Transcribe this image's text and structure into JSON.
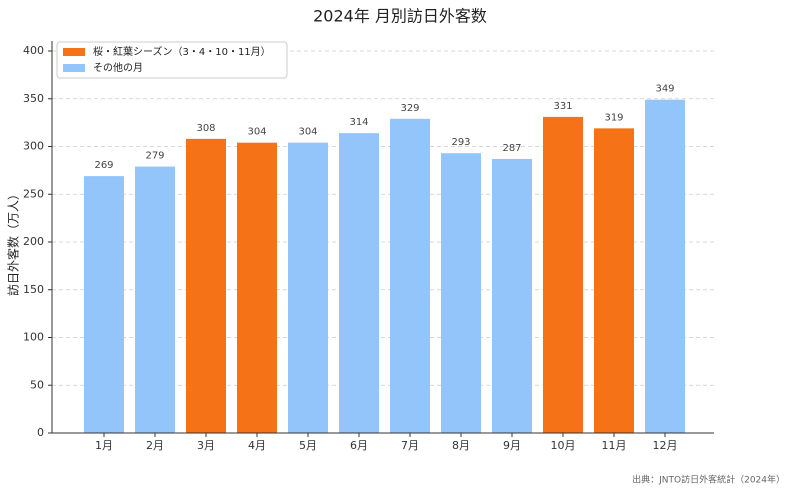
{
  "chart_data": {
    "type": "bar",
    "title": "2024年 月別訪日外客数",
    "y_label": "訪日外客数（万人）",
    "source": "出典：JNTO訪日外客統計（2024年）",
    "categories": [
      "1月",
      "2月",
      "3月",
      "4月",
      "5月",
      "6月",
      "7月",
      "8月",
      "9月",
      "10月",
      "11月",
      "12月"
    ],
    "series": [
      {
        "name": "桜・紅葉シーズン（3・4・10・11月）",
        "color": "#f57316",
        "values": [
          null,
          null,
          308,
          304,
          null,
          null,
          null,
          null,
          null,
          331,
          319,
          null
        ]
      },
      {
        "name": "その他の月",
        "color": "#93c5fb",
        "values": [
          269,
          279,
          null,
          null,
          304,
          314,
          329,
          293,
          287,
          null,
          null,
          349
        ]
      }
    ],
    "ylim": [
      0,
      400
    ],
    "yticks": [
      0,
      50,
      100,
      150,
      200,
      250,
      300,
      350,
      400
    ],
    "grid": true,
    "legend": "upper-left"
  }
}
